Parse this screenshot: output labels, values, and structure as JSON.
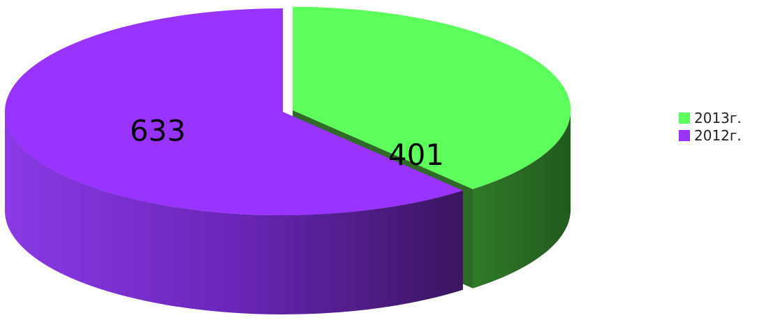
{
  "chart_data": {
    "type": "pie",
    "title": "",
    "categories": [
      "2013г.",
      "2012г."
    ],
    "values": [
      401,
      633
    ],
    "colors": [
      "#5cff5c",
      "#9933ff"
    ],
    "side_colors": [
      "#2d6b26",
      "#7a2fd6"
    ],
    "data_labels": [
      "401",
      "633"
    ],
    "exploded": "2013г.",
    "style": "3d",
    "legend_position": "right"
  },
  "legend": {
    "items": [
      {
        "label": "2013г.",
        "color": "#5cff5c"
      },
      {
        "label": "2012г.",
        "color": "#9933ff"
      }
    ]
  }
}
